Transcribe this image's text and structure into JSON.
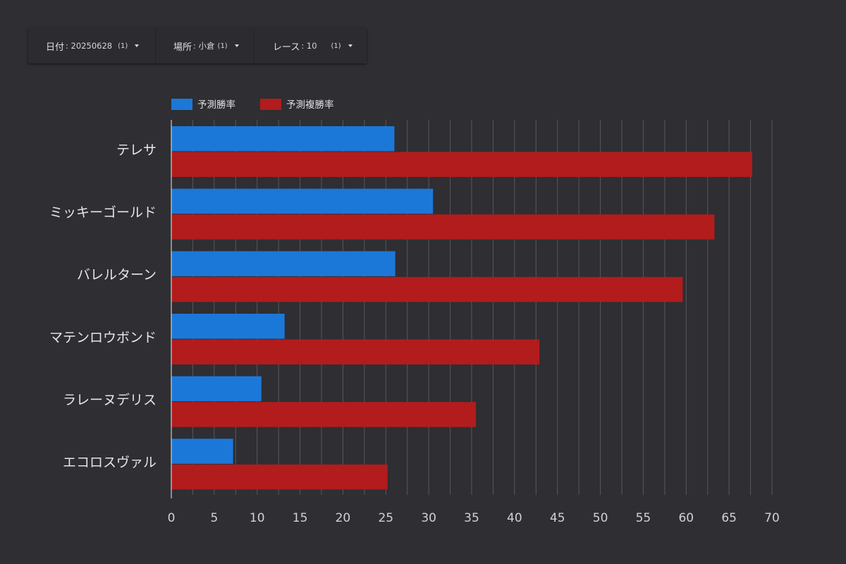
{
  "filters": [
    {
      "label": "日付",
      "value": "20250628",
      "count": "(1)"
    },
    {
      "label": "場所",
      "value": "小倉",
      "count": "(1)"
    },
    {
      "label": "レース",
      "value": "10",
      "count": "(1)"
    }
  ],
  "chart_data": {
    "type": "bar",
    "orientation": "horizontal",
    "categories": [
      "テレサ",
      "ミッキーゴールド",
      "バレルターン",
      "マテンロウボンド",
      "ラレーヌデリス",
      "エコロスヴァル"
    ],
    "series": [
      {
        "name": "予測勝率",
        "color": "#1c78d8",
        "values": [
          26.0,
          30.5,
          26.1,
          13.2,
          10.5,
          7.2
        ]
      },
      {
        "name": "予測複勝率",
        "color": "#b21c1c",
        "values": [
          67.7,
          63.3,
          59.6,
          42.9,
          35.5,
          25.2
        ]
      }
    ],
    "x_ticks": [
      0,
      5,
      10,
      15,
      20,
      25,
      30,
      35,
      40,
      45,
      50,
      55,
      60,
      65,
      70
    ],
    "xlim": [
      0,
      70
    ],
    "grid": true,
    "legend_position": "top-left"
  }
}
